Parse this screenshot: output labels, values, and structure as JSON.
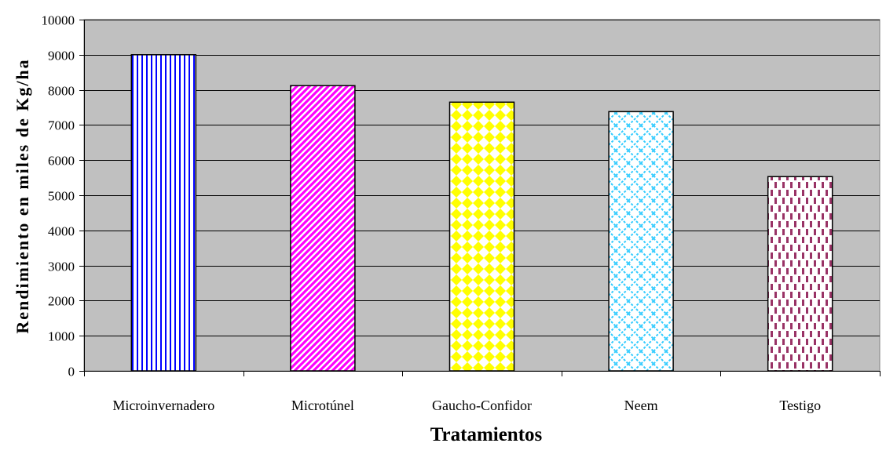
{
  "chart_data": {
    "type": "bar",
    "title": "",
    "xlabel": "Tratamientos",
    "ylabel": "Rendimiento en miles de Kg/ha",
    "categories": [
      "Microinvernadero",
      "Microtúnel",
      "Gaucho-Confidor",
      "Neem",
      "Testigo"
    ],
    "values": [
      9000,
      8120,
      7650,
      7380,
      5530
    ],
    "ylim": [
      0,
      10000
    ],
    "yticks": [
      "0",
      "1000",
      "2000",
      "3000",
      "4000",
      "5000",
      "6000",
      "7000",
      "8000",
      "9000",
      "10000"
    ],
    "grid": true,
    "legend": "none",
    "plot_background": "#c0c0c0",
    "bar_patterns": [
      "vertical-lines",
      "diagonal-stripes",
      "diamonds",
      "weave",
      "dashed-vertical"
    ],
    "bar_colors": [
      "#0000ff",
      "#ff00ff",
      "#ffff00",
      "#33ccff",
      "#993366"
    ]
  }
}
